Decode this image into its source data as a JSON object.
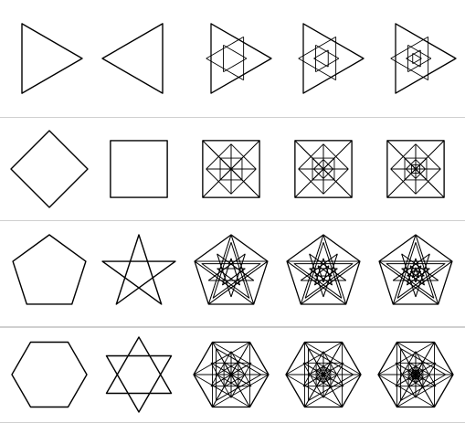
{
  "figure": {
    "rows": [
      {
        "name": "triangle",
        "sides": 3,
        "stages": 5
      },
      {
        "name": "square",
        "sides": 4,
        "stages": 5
      },
      {
        "name": "pentagon",
        "sides": 5,
        "stages": 5
      },
      {
        "name": "hexagon",
        "sides": 6,
        "stages": 5
      }
    ],
    "stroke_color": "#000000",
    "panel_border_color": "#d0d0d0"
  }
}
